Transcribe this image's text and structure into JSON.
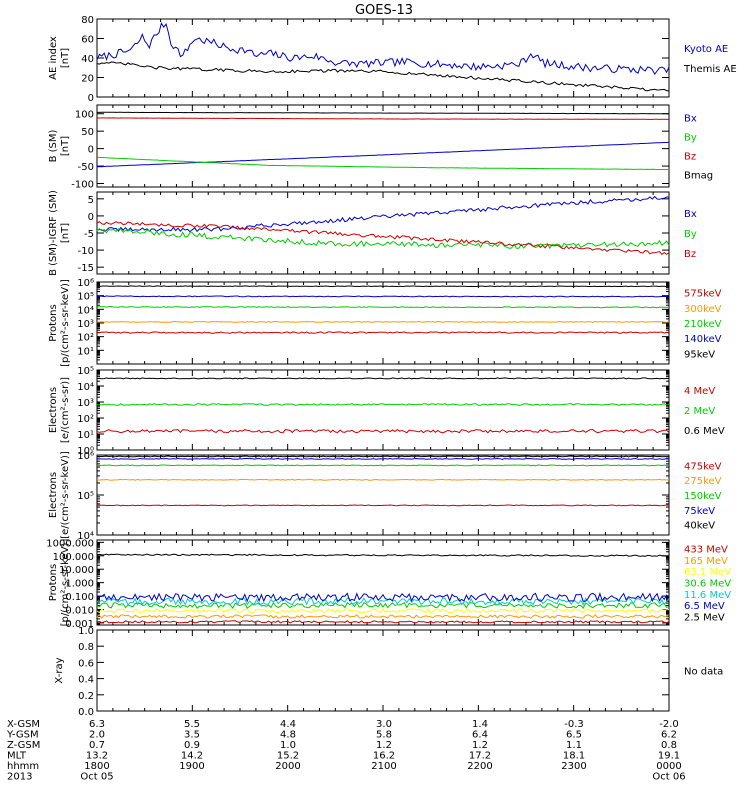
{
  "title": "GOES-13",
  "chart_data": [
    {
      "id": "ae",
      "type": "line",
      "ylabel": [
        "AE index",
        "[nT]"
      ],
      "ylim": [
        0,
        80
      ],
      "yticks": [
        0,
        20,
        40,
        60,
        80
      ],
      "yticklabels": [
        "0",
        "20",
        "40",
        "60",
        "80"
      ],
      "series": [
        {
          "name": "Kyoto AE",
          "color": "#0000cc",
          "keys": [
            [
              0,
              40
            ],
            [
              0.04,
              45
            ],
            [
              0.06,
              48
            ],
            [
              0.08,
              62
            ],
            [
              0.09,
              52
            ],
            [
              0.11,
              70
            ],
            [
              0.12,
              77
            ],
            [
              0.13,
              55
            ],
            [
              0.15,
              42
            ],
            [
              0.17,
              60
            ],
            [
              0.2,
              56
            ],
            [
              0.23,
              50
            ],
            [
              0.26,
              48
            ],
            [
              0.28,
              42
            ],
            [
              0.3,
              45
            ],
            [
              0.34,
              40
            ],
            [
              0.38,
              42
            ],
            [
              0.42,
              35
            ],
            [
              0.46,
              34
            ],
            [
              0.5,
              35
            ],
            [
              0.54,
              36
            ],
            [
              0.58,
              34
            ],
            [
              0.62,
              33
            ],
            [
              0.66,
              31
            ],
            [
              0.7,
              32
            ],
            [
              0.74,
              34
            ],
            [
              0.76,
              45
            ],
            [
              0.78,
              35
            ],
            [
              0.82,
              32
            ],
            [
              0.86,
              30
            ],
            [
              0.9,
              29
            ],
            [
              0.95,
              28
            ],
            [
              1,
              27
            ]
          ],
          "noise": 4
        },
        {
          "name": "Themis AE",
          "color": "#000000",
          "keys": [
            [
              0,
              35
            ],
            [
              0.05,
              34
            ],
            [
              0.1,
              30
            ],
            [
              0.2,
              28
            ],
            [
              0.3,
              26
            ],
            [
              0.4,
              27
            ],
            [
              0.5,
              26
            ],
            [
              0.6,
              22
            ],
            [
              0.7,
              18
            ],
            [
              0.8,
              14
            ],
            [
              0.9,
              10
            ],
            [
              1,
              6
            ]
          ],
          "noise": 1.5
        }
      ]
    },
    {
      "id": "bsm",
      "type": "line",
      "ylabel": [
        "B (SM)",
        "[nT]"
      ],
      "ylim": [
        -110,
        125
      ],
      "yticks": [
        -100,
        -50,
        0,
        50,
        100
      ],
      "yticklabels": [
        "-100",
        "-50",
        "0",
        "50",
        "100"
      ],
      "series": [
        {
          "name": "Bx",
          "color": "#0000cc",
          "keys": [
            [
              0,
              -52
            ],
            [
              0.5,
              -18
            ],
            [
              1,
              18
            ]
          ],
          "noise": 0.3
        },
        {
          "name": "By",
          "color": "#00cc00",
          "keys": [
            [
              0,
              -25
            ],
            [
              0.3,
              -48
            ],
            [
              0.6,
              -55
            ],
            [
              1,
              -60
            ]
          ],
          "noise": 0.3
        },
        {
          "name": "Bz",
          "color": "#cc0000",
          "keys": [
            [
              0,
              88
            ],
            [
              0.5,
              85
            ],
            [
              1,
              84
            ]
          ],
          "noise": 0.3
        },
        {
          "name": "Bmag",
          "color": "#000000",
          "keys": [
            [
              0,
              104
            ],
            [
              0.5,
              102
            ],
            [
              1,
              100
            ]
          ],
          "noise": 0.3
        }
      ]
    },
    {
      "id": "bigrf",
      "type": "line",
      "ylabel": [
        "B (SM)-IGRF (SM)",
        "[nT]"
      ],
      "ylim": [
        -17,
        7
      ],
      "yticks": [
        -15,
        -10,
        -5,
        0,
        5
      ],
      "yticklabels": [
        "-15",
        "-10",
        "-5",
        "0",
        "5"
      ],
      "series": [
        {
          "name": "Bx",
          "color": "#0000cc",
          "keys": [
            [
              0,
              -4
            ],
            [
              0.2,
              -4
            ],
            [
              0.4,
              -1.5
            ],
            [
              0.6,
              1
            ],
            [
              0.8,
              3.5
            ],
            [
              1,
              5.5
            ]
          ],
          "noise": 0.6
        },
        {
          "name": "By",
          "color": "#00cc00",
          "keys": [
            [
              0,
              -4
            ],
            [
              0.2,
              -6
            ],
            [
              0.4,
              -8
            ],
            [
              0.6,
              -8.5
            ],
            [
              0.8,
              -8.8
            ],
            [
              1,
              -8
            ]
          ],
          "noise": 0.8
        },
        {
          "name": "Bz",
          "color": "#cc0000",
          "keys": [
            [
              0,
              -2
            ],
            [
              0.2,
              -3
            ],
            [
              0.4,
              -5
            ],
            [
              0.6,
              -7
            ],
            [
              0.8,
              -9
            ],
            [
              1,
              -11
            ]
          ],
          "noise": 0.5
        }
      ]
    },
    {
      "id": "protons_low",
      "type": "line",
      "scale": "log",
      "ylabel": [
        "Protons",
        "[p/(cm²-s-sr-keV)]"
      ],
      "ylim": [
        1,
        1000000
      ],
      "yticks": [
        10,
        100,
        1000,
        10000,
        100000,
        1000000
      ],
      "yticklabels": [
        "10¹",
        "10²",
        "10³",
        "10⁴",
        "10⁵",
        "10⁶"
      ],
      "series": [
        {
          "name": "575keV",
          "color": "#cc0000",
          "keys": [
            [
              0,
              200
            ],
            [
              1,
              200
            ]
          ],
          "noise": 0.05
        },
        {
          "name": "300keV",
          "color": "#ff9900",
          "keys": [
            [
              0,
              1200
            ],
            [
              1,
              1200
            ]
          ],
          "noise": 0.03
        },
        {
          "name": "210keV",
          "color": "#00cc00",
          "keys": [
            [
              0,
              15000
            ],
            [
              1,
              14000
            ]
          ],
          "noise": 0.03
        },
        {
          "name": "140keV",
          "color": "#0000cc",
          "keys": [
            [
              0,
              90000
            ],
            [
              1,
              85000
            ]
          ],
          "noise": 0.03
        },
        {
          "name": "95keV",
          "color": "#000000",
          "keys": [
            [
              0,
              500000
            ],
            [
              1,
              480000
            ]
          ],
          "noise": 0.02
        }
      ]
    },
    {
      "id": "electrons_mev",
      "type": "line",
      "scale": "log",
      "ylabel": [
        "Electrons",
        "[e/(cm²-s-sr)]"
      ],
      "ylim": [
        1,
        100000
      ],
      "yticks": [
        1,
        10,
        100,
        1000,
        10000,
        100000
      ],
      "yticklabels": [
        "10⁰",
        "10¹",
        "10²",
        "10³",
        "10⁴",
        "10⁵"
      ],
      "series": [
        {
          "name": "4 MeV",
          "color": "#cc0000",
          "keys": [
            [
              0,
              15
            ],
            [
              1,
              15
            ]
          ],
          "noise": 0.1
        },
        {
          "name": "2 MeV",
          "color": "#00cc00",
          "keys": [
            [
              0,
              700
            ],
            [
              1,
              700
            ]
          ],
          "noise": 0.05
        },
        {
          "name": "0.6 MeV",
          "color": "#000000",
          "keys": [
            [
              0,
              30000
            ],
            [
              1,
              30000
            ]
          ],
          "noise": 0.03
        }
      ]
    },
    {
      "id": "electrons_kev",
      "type": "line",
      "scale": "log",
      "ylabel": [
        "Electrons",
        "[e/(cm²-s-sr-keV)]"
      ],
      "ylim": [
        10000,
        1000000
      ],
      "yticks": [
        10000,
        100000,
        1000000
      ],
      "yticklabels": [
        "10⁴",
        "10⁵",
        "10⁶"
      ],
      "series": [
        {
          "name": "475keV",
          "color": "#cc0000",
          "keys": [
            [
              0,
              55000
            ],
            [
              1,
              55000
            ]
          ],
          "noise": 0.01
        },
        {
          "name": "275keV",
          "color": "#ff9900",
          "keys": [
            [
              0,
              240000
            ],
            [
              1,
              240000
            ]
          ],
          "noise": 0.01
        },
        {
          "name": "150keV",
          "color": "#00cc00",
          "keys": [
            [
              0,
              550000
            ],
            [
              1,
              550000
            ]
          ],
          "noise": 0.01
        },
        {
          "name": "75keV",
          "color": "#0000cc",
          "keys": [
            [
              0,
              800000
            ],
            [
              1,
              800000
            ]
          ],
          "noise": 0.01
        },
        {
          "name": "40keV",
          "color": "#000000",
          "keys": [
            [
              0,
              920000
            ],
            [
              1,
              920000
            ]
          ],
          "noise": 0.01
        }
      ]
    },
    {
      "id": "protons_mev",
      "type": "line",
      "scale": "log",
      "ylabel": [
        "Protons",
        "[p/(cm²-s-sr-keV)]"
      ],
      "ylim": [
        0.0007,
        1500
      ],
      "yticks": [
        0.001,
        0.01,
        0.1,
        1,
        10,
        100,
        1000
      ],
      "yticklabels": [
        "0.001",
        "0.010",
        "0.100",
        "1.000",
        "10.000",
        "100.000",
        "1000.000"
      ],
      "series": [
        {
          "name": "433 MeV",
          "color": "#cc0000",
          "keys": [
            [
              0,
              0.0012
            ],
            [
              1,
              0.0012
            ]
          ],
          "noise": 0.08
        },
        {
          "name": "165 MeV",
          "color": "#ff9900",
          "keys": [
            [
              0,
              0.003
            ],
            [
              1,
              0.003
            ]
          ],
          "noise": 0.12
        },
        {
          "name": "63.1 MeV",
          "color": "#ffff00",
          "keys": [
            [
              0,
              0.008
            ],
            [
              1,
              0.008
            ]
          ],
          "noise": 0.15
        },
        {
          "name": "30.6 MeV",
          "color": "#00cc00",
          "keys": [
            [
              0,
              0.02
            ],
            [
              1,
              0.02
            ]
          ],
          "noise": 0.2
        },
        {
          "name": "11.6 MeV",
          "color": "#00cccc",
          "keys": [
            [
              0,
              0.04
            ],
            [
              1,
              0.04
            ]
          ],
          "noise": 0.25
        },
        {
          "name": "6.5 MeV",
          "color": "#0000cc",
          "keys": [
            [
              0,
              0.08
            ],
            [
              1,
              0.08
            ]
          ],
          "noise": 0.3
        },
        {
          "name": "2.5 MeV",
          "color": "#000000",
          "keys": [
            [
              0,
              120
            ],
            [
              1,
              100
            ]
          ],
          "noise": 0.05
        }
      ]
    },
    {
      "id": "xray",
      "type": "line",
      "ylabel": [
        "X-ray"
      ],
      "ylim": [
        0,
        1
      ],
      "yticks": [
        0,
        0.2,
        0.4,
        0.6,
        0.8,
        1.0
      ],
      "yticklabels": [
        "0.0",
        "0.2",
        "0.4",
        "0.6",
        "0.8",
        "1.0"
      ],
      "note": "No data",
      "series": []
    }
  ],
  "xaxis": {
    "rows": [
      {
        "label": "X-GSM",
        "values": [
          "6.3",
          "5.5",
          "4.4",
          "3.0",
          "1.4",
          "-0.3",
          "-2.0"
        ]
      },
      {
        "label": "Y-GSM",
        "values": [
          "2.0",
          "3.5",
          "4.8",
          "5.8",
          "6.4",
          "6.5",
          "6.2"
        ]
      },
      {
        "label": "Z-GSM",
        "values": [
          "0.7",
          "0.9",
          "1.0",
          "1.2",
          "1.2",
          "1.1",
          "0.8"
        ]
      },
      {
        "label": "MLT",
        "values": [
          "13.2",
          "14.2",
          "15.2",
          "16.2",
          "17.2",
          "18.1",
          "19.1"
        ]
      },
      {
        "label": "hhmm",
        "values": [
          "1800",
          "1900",
          "2000",
          "2100",
          "2200",
          "2300",
          "0000"
        ]
      },
      {
        "label": "2013",
        "values": [
          "Oct 05",
          "",
          "",
          "",
          "",
          "",
          "Oct 06"
        ]
      }
    ]
  }
}
